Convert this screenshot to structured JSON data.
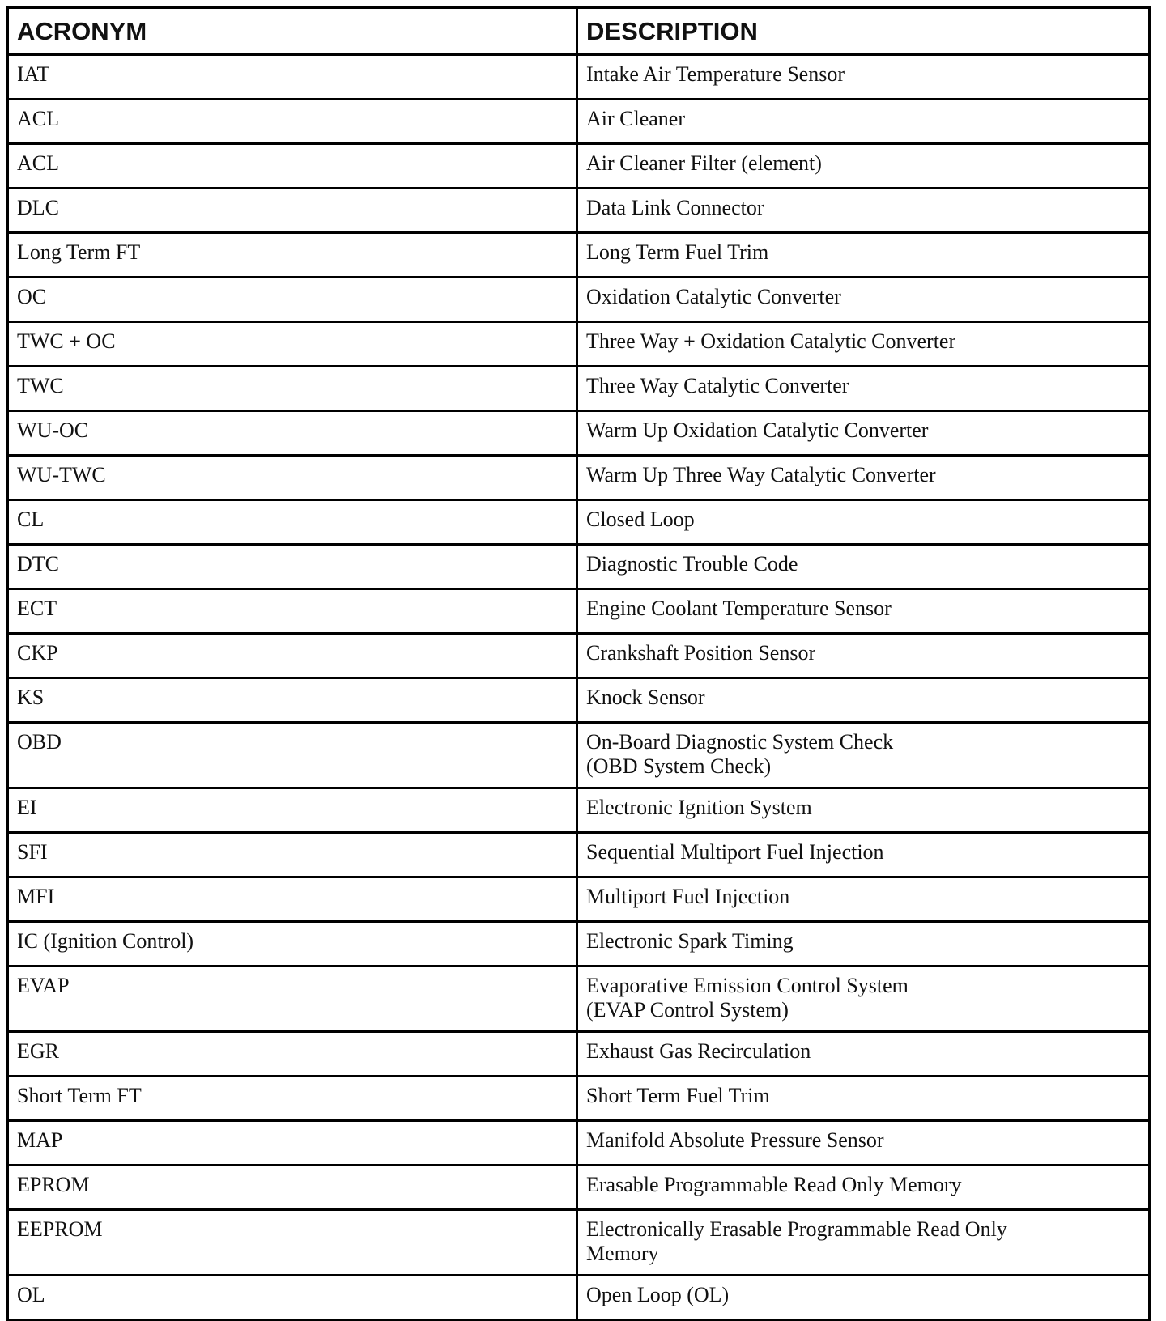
{
  "table": {
    "headers": [
      "ACRONYM",
      "DESCRIPTION"
    ],
    "rows": [
      {
        "acronym": "IAT",
        "description": "Intake Air Temperature Sensor"
      },
      {
        "acronym": "ACL",
        "description": "Air Cleaner"
      },
      {
        "acronym": "ACL",
        "description": "Air Cleaner Filter (element)"
      },
      {
        "acronym": "DLC",
        "description": "Data Link Connector"
      },
      {
        "acronym": "Long Term FT",
        "description": "Long Term Fuel Trim"
      },
      {
        "acronym": "OC",
        "description": "Oxidation Catalytic Converter"
      },
      {
        "acronym": "TWC + OC",
        "description": "Three Way + Oxidation Catalytic Converter"
      },
      {
        "acronym": "TWC",
        "description": "Three Way Catalytic Converter"
      },
      {
        "acronym": "WU-OC",
        "description": "Warm Up Oxidation Catalytic Converter"
      },
      {
        "acronym": "WU-TWC",
        "description": "Warm Up Three Way Catalytic Converter"
      },
      {
        "acronym": "CL",
        "description": "Closed Loop"
      },
      {
        "acronym": "DTC",
        "description": "Diagnostic Trouble Code"
      },
      {
        "acronym": "ECT",
        "description": "Engine Coolant Temperature Sensor"
      },
      {
        "acronym": "CKP",
        "description": "Crankshaft Position Sensor"
      },
      {
        "acronym": "KS",
        "description": "Knock Sensor"
      },
      {
        "acronym": "OBD",
        "description": "On-Board Diagnostic System Check",
        "description2": "(OBD System Check)"
      },
      {
        "acronym": "EI",
        "description": "Electronic Ignition System"
      },
      {
        "acronym": "SFI",
        "description": "Sequential Multiport Fuel Injection"
      },
      {
        "acronym": "MFI",
        "description": "Multiport Fuel Injection"
      },
      {
        "acronym": "IC (Ignition Control)",
        "description": "Electronic Spark Timing"
      },
      {
        "acronym": "EVAP",
        "description": "Evaporative Emission Control System",
        "description2": "(EVAP Control System)"
      },
      {
        "acronym": "EGR",
        "description": "Exhaust Gas Recirculation"
      },
      {
        "acronym": "Short Term FT",
        "description": "Short Term Fuel Trim"
      },
      {
        "acronym": "MAP",
        "description": "Manifold Absolute Pressure Sensor"
      },
      {
        "acronym": "EPROM",
        "description": "Erasable Programmable Read Only Memory"
      },
      {
        "acronym": "EEPROM",
        "description": "Electronically Erasable Programmable Read Only",
        "description2": "Memory"
      },
      {
        "acronym": "OL",
        "description": "Open Loop (OL)"
      }
    ]
  }
}
